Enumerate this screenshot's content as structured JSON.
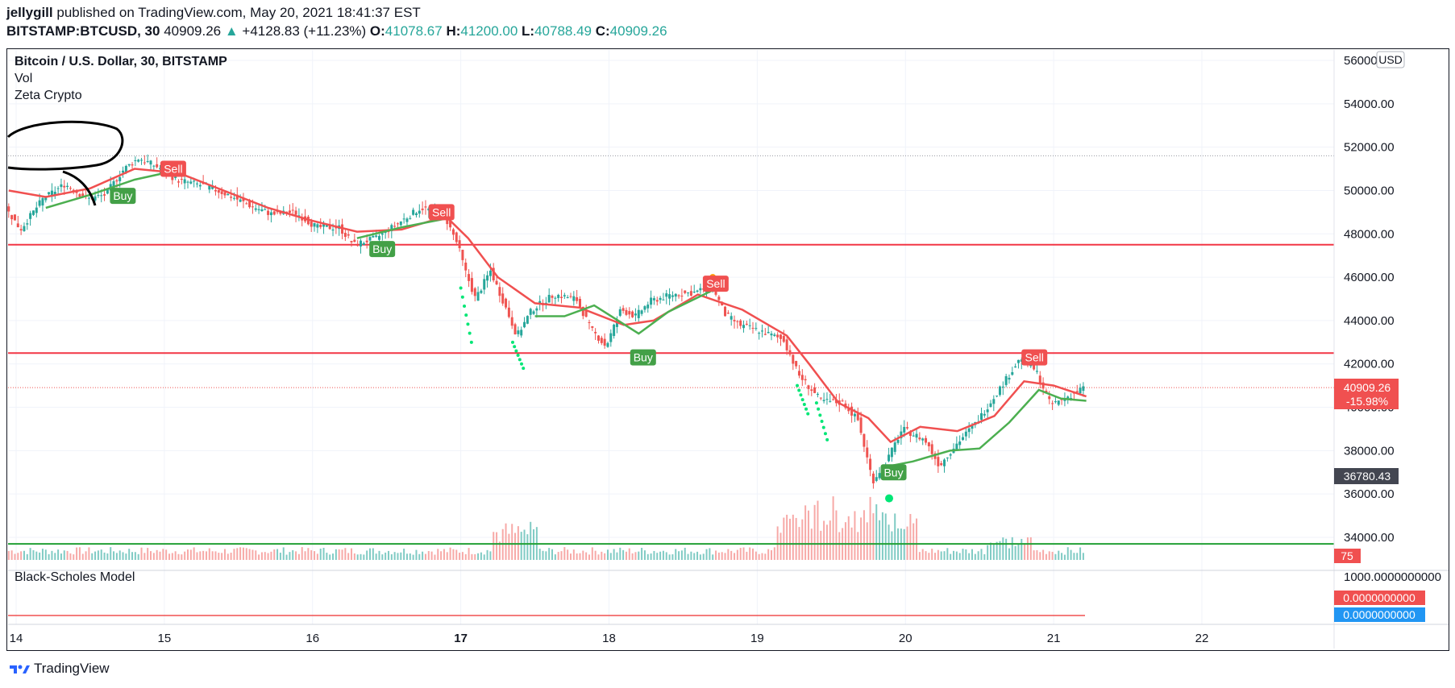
{
  "header": {
    "author": "jellygill",
    "published_text": "published on TradingView.com, May 20, 2021 18:41:37 EST",
    "symbol": "BITSTAMP:BTCUSD, 30",
    "last": "40909.26",
    "change": "+4128.83 (+11.23%)",
    "o_label": "O:",
    "o_value": "41078.67",
    "h_label": "H:",
    "h_value": "41200.00",
    "l_label": "L:",
    "l_value": "40788.49",
    "c_label": "C:",
    "c_value": "40909.26"
  },
  "legend": {
    "title": "Bitcoin / U.S. Dollar, 30, BITSTAMP",
    "vol": "Vol",
    "indicator": "Zeta Crypto"
  },
  "subpane": {
    "title": "Black-Scholes Model",
    "top_tick": "1000.0000000000",
    "red_value": "0.0000000000",
    "blue_value": "0.0000000000"
  },
  "price_axis": {
    "currency": "USD",
    "ticks": [
      "56000.00",
      "54000.00",
      "52000.00",
      "50000.00",
      "48000.00",
      "46000.00",
      "44000.00",
      "42000.00",
      "40000.00",
      "38000.00",
      "36000.00",
      "34000.00"
    ],
    "last_price": "40909.26",
    "last_change": "-15.98%",
    "crosshair_price": "36780.43",
    "volume_tag": "75"
  },
  "time_axis": {
    "ticks": [
      "14",
      "15",
      "16",
      "17",
      "18",
      "19",
      "20",
      "21",
      "22"
    ]
  },
  "signals": [
    {
      "label": "Buy",
      "day": 14.72,
      "price": 49750
    },
    {
      "label": "Sell",
      "day": 15.06,
      "price": 51000
    },
    {
      "label": "Buy",
      "day": 16.47,
      "price": 47300
    },
    {
      "label": "Sell",
      "day": 16.87,
      "price": 49000
    },
    {
      "label": "Buy",
      "day": 18.23,
      "price": 42300
    },
    {
      "label": "Sell",
      "day": 18.72,
      "price": 45700
    },
    {
      "label": "Buy",
      "day": 19.92,
      "price": 37000
    },
    {
      "label": "Sell",
      "day": 20.87,
      "price": 42300
    }
  ],
  "footer": {
    "brand": "TradingView"
  },
  "colors": {
    "up": "#26a69a",
    "down": "#ef5350",
    "ma_red": "#f05050",
    "ma_green": "#4caf50",
    "hline_red": "#f23645",
    "hline_green": "#22a035",
    "dots": "#00e676",
    "blue": "#2196f3"
  },
  "chart_data": {
    "type": "candlestick",
    "x_unit": "day of May 2021",
    "xlim": [
      13.95,
      22.9
    ],
    "ylim": [
      33300,
      56400
    ],
    "horizontal_levels": [
      {
        "price": 47500,
        "color": "red"
      },
      {
        "price": 42500,
        "color": "red"
      },
      {
        "price": 33700,
        "color": "green"
      }
    ],
    "dotted_level": 51600,
    "last_price": 40909.26,
    "close_path": [
      [
        13.95,
        49200
      ],
      [
        14.05,
        48200
      ],
      [
        14.2,
        49600
      ],
      [
        14.35,
        50300
      ],
      [
        14.5,
        49600
      ],
      [
        14.62,
        49800
      ],
      [
        14.75,
        51000
      ],
      [
        14.85,
        51500
      ],
      [
        15.0,
        51000
      ],
      [
        15.1,
        50500
      ],
      [
        15.3,
        50200
      ],
      [
        15.45,
        49800
      ],
      [
        15.6,
        49300
      ],
      [
        15.75,
        48900
      ],
      [
        15.9,
        49000
      ],
      [
        16.05,
        48300
      ],
      [
        16.2,
        48300
      ],
      [
        16.3,
        47500
      ],
      [
        16.45,
        47800
      ],
      [
        16.6,
        48500
      ],
      [
        16.75,
        49200
      ],
      [
        16.9,
        49000
      ],
      [
        17.0,
        47500
      ],
      [
        17.05,
        46300
      ],
      [
        17.12,
        45000
      ],
      [
        17.22,
        46300
      ],
      [
        17.3,
        45000
      ],
      [
        17.4,
        43300
      ],
      [
        17.5,
        44500
      ],
      [
        17.65,
        45200
      ],
      [
        17.8,
        45000
      ],
      [
        17.9,
        43600
      ],
      [
        18.0,
        42800
      ],
      [
        18.1,
        44500
      ],
      [
        18.2,
        44200
      ],
      [
        18.3,
        44900
      ],
      [
        18.45,
        45200
      ],
      [
        18.6,
        45300
      ],
      [
        18.72,
        45600
      ],
      [
        18.8,
        44300
      ],
      [
        18.9,
        43800
      ],
      [
        19.05,
        43500
      ],
      [
        19.2,
        43100
      ],
      [
        19.3,
        41500
      ],
      [
        19.45,
        40300
      ],
      [
        19.6,
        40200
      ],
      [
        19.7,
        39400
      ],
      [
        19.8,
        36600
      ],
      [
        19.9,
        37600
      ],
      [
        20.0,
        39000
      ],
      [
        20.15,
        38500
      ],
      [
        20.25,
        37300
      ],
      [
        20.35,
        38200
      ],
      [
        20.5,
        39300
      ],
      [
        20.65,
        40800
      ],
      [
        20.8,
        42300
      ],
      [
        20.9,
        41700
      ],
      [
        21.0,
        40100
      ],
      [
        21.15,
        40600
      ],
      [
        21.22,
        40909
      ]
    ],
    "red_ma": [
      [
        13.95,
        50000
      ],
      [
        14.2,
        49700
      ],
      [
        14.5,
        50100
      ],
      [
        14.8,
        51000
      ],
      [
        15.1,
        50800
      ],
      [
        15.4,
        50000
      ],
      [
        15.7,
        49200
      ],
      [
        16.0,
        48600
      ],
      [
        16.3,
        48100
      ],
      [
        16.6,
        48200
      ],
      [
        16.9,
        48800
      ],
      [
        17.05,
        47800
      ],
      [
        17.25,
        46000
      ],
      [
        17.5,
        44800
      ],
      [
        17.8,
        44600
      ],
      [
        18.1,
        43800
      ],
      [
        18.3,
        44000
      ],
      [
        18.6,
        45200
      ],
      [
        18.9,
        44500
      ],
      [
        19.2,
        43300
      ],
      [
        19.35,
        42000
      ],
      [
        19.55,
        40200
      ],
      [
        19.75,
        39500
      ],
      [
        19.9,
        38400
      ],
      [
        20.1,
        39100
      ],
      [
        20.35,
        38900
      ],
      [
        20.6,
        39600
      ],
      [
        20.8,
        41200
      ],
      [
        21.0,
        41000
      ],
      [
        21.22,
        40500
      ]
    ],
    "green_ma": [
      [
        14.2,
        49200
      ],
      [
        14.5,
        49800
      ],
      [
        14.8,
        50500
      ],
      [
        15.0,
        50800
      ]
    ],
    "green_ma_2": [
      [
        16.3,
        47800
      ],
      [
        16.6,
        48300
      ],
      [
        16.9,
        48700
      ]
    ],
    "green_ma_3": [
      [
        17.5,
        44200
      ],
      [
        17.7,
        44200
      ],
      [
        17.9,
        44700
      ],
      [
        18.2,
        43400
      ],
      [
        18.4,
        44400
      ],
      [
        18.7,
        45400
      ]
    ],
    "green_ma_4": [
      [
        19.9,
        37300
      ],
      [
        20.05,
        37500
      ],
      [
        20.3,
        38000
      ],
      [
        20.5,
        38100
      ],
      [
        20.7,
        39300
      ],
      [
        20.9,
        40800
      ],
      [
        21.05,
        40400
      ],
      [
        21.22,
        40300
      ]
    ],
    "volume_peaks": [
      {
        "day": 17.37,
        "rel": 0.6
      },
      {
        "day": 19.27,
        "rel": 0.85
      },
      {
        "day": 19.45,
        "rel": 1.0
      },
      {
        "day": 19.75,
        "rel": 0.95
      },
      {
        "day": 19.85,
        "rel": 1.0
      },
      {
        "day": 19.93,
        "rel": 0.8
      },
      {
        "day": 20.7,
        "rel": 0.4
      }
    ]
  }
}
